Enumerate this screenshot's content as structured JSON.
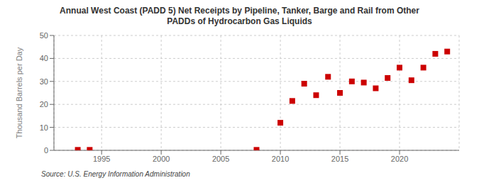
{
  "chart_data": {
    "type": "scatter",
    "title": "Annual West Coast (PADD 5) Net Receipts by Pipeline, Tanker, Barge and Rail from Other\nPADDs of Hydrocarbon Gas Liquids",
    "ylabel": "Thousand Barrels per Day",
    "annotations": [
      "Source: U.S. Energy Information Administration"
    ],
    "x": [
      1993,
      1994,
      2008,
      2010,
      2011,
      2012,
      2013,
      2014,
      2015,
      2016,
      2017,
      2018,
      2019,
      2020,
      2021,
      2022,
      2023,
      2024
    ],
    "values": [
      0.2,
      0.2,
      0.2,
      12.0,
      21.5,
      29.0,
      24.0,
      32.0,
      25.0,
      30.0,
      29.5,
      27.0,
      31.5,
      36.0,
      30.5,
      36.0,
      42.0,
      43.0
    ],
    "color": "#cc0000",
    "marker": "square",
    "xlim": [
      1991,
      2025
    ],
    "ylim": [
      0,
      50
    ],
    "xticks": [
      1995,
      2000,
      2005,
      2010,
      2015,
      2020
    ],
    "yticks": [
      0,
      10,
      20,
      30,
      40,
      50
    ],
    "grid": true
  }
}
